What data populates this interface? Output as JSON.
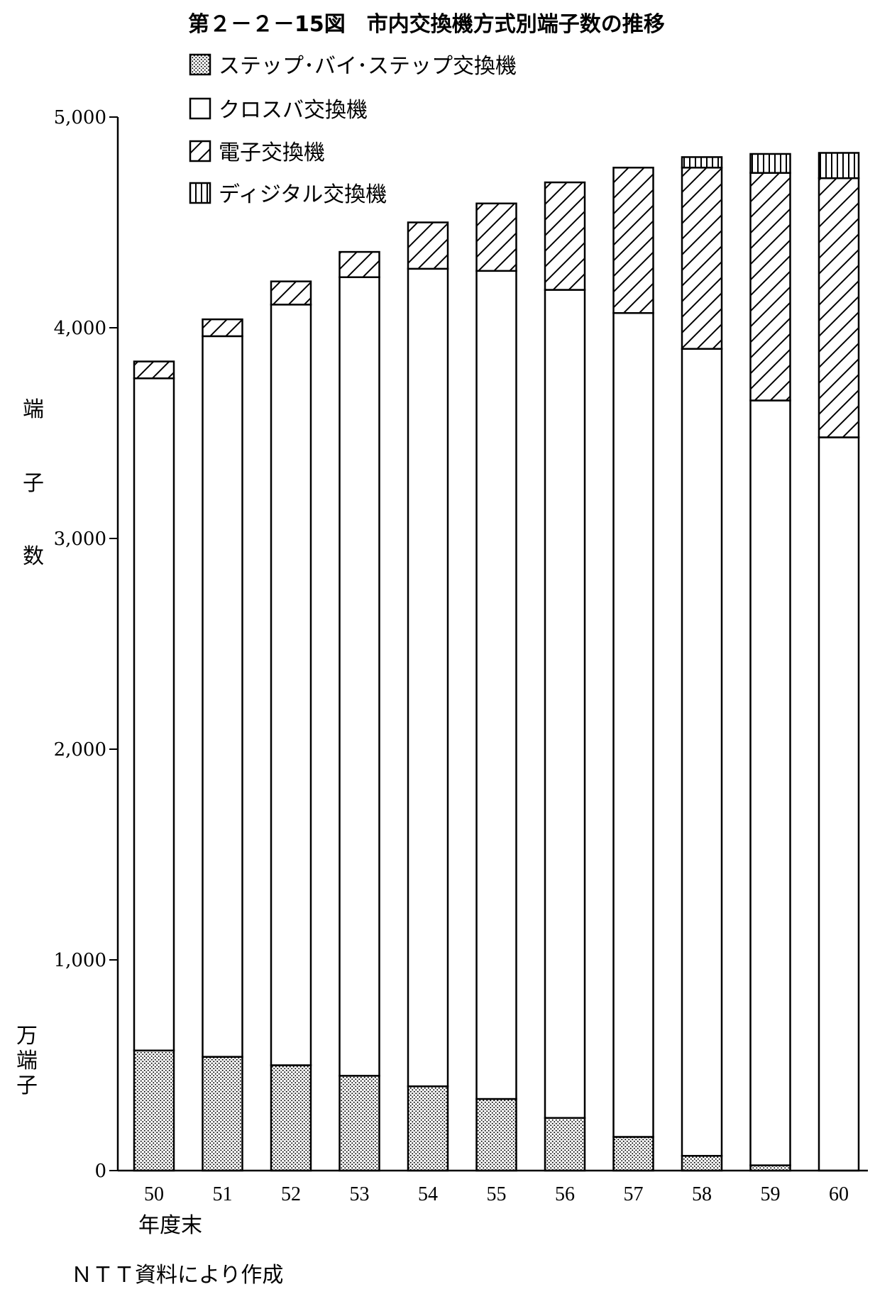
{
  "title": "第２－２－15図　市内交換機方式別端子数の推移",
  "source_note": "ＮＴＴ資料により作成",
  "y_axis_label_chars": [
    "端",
    "子",
    "数"
  ],
  "y_unit_chars": [
    "万",
    "端",
    "子"
  ],
  "x_axis_label": "年度末",
  "chart_data": {
    "type": "bar",
    "stacked": true,
    "categories": [
      "50",
      "51",
      "52",
      "53",
      "54",
      "55",
      "56",
      "57",
      "58",
      "59",
      "60"
    ],
    "series": [
      {
        "name": "ステップ･バイ･ステップ交換機",
        "pattern": "dots",
        "values": [
          570,
          540,
          500,
          450,
          400,
          340,
          250,
          160,
          70,
          25,
          0
        ]
      },
      {
        "name": "クロスバ交換機",
        "pattern": "none",
        "values": [
          3190,
          3420,
          3610,
          3790,
          3880,
          3930,
          3930,
          3910,
          3830,
          3630,
          3480
        ]
      },
      {
        "name": "電子交換機",
        "pattern": "diagonal",
        "values": [
          80,
          80,
          110,
          120,
          220,
          320,
          510,
          690,
          860,
          1080,
          1230
        ]
      },
      {
        "name": "ディジタル交換機",
        "pattern": "vertical",
        "values": [
          0,
          0,
          0,
          0,
          0,
          0,
          0,
          0,
          50,
          90,
          120
        ]
      }
    ],
    "ylim": [
      0,
      5000
    ],
    "yticks": [
      "0",
      "1,000",
      "2,000",
      "3,000",
      "4,000",
      "5,000"
    ],
    "ytick_values": [
      0,
      1000,
      2000,
      3000,
      4000,
      5000
    ],
    "grid": false,
    "legend_position": "top-left"
  }
}
